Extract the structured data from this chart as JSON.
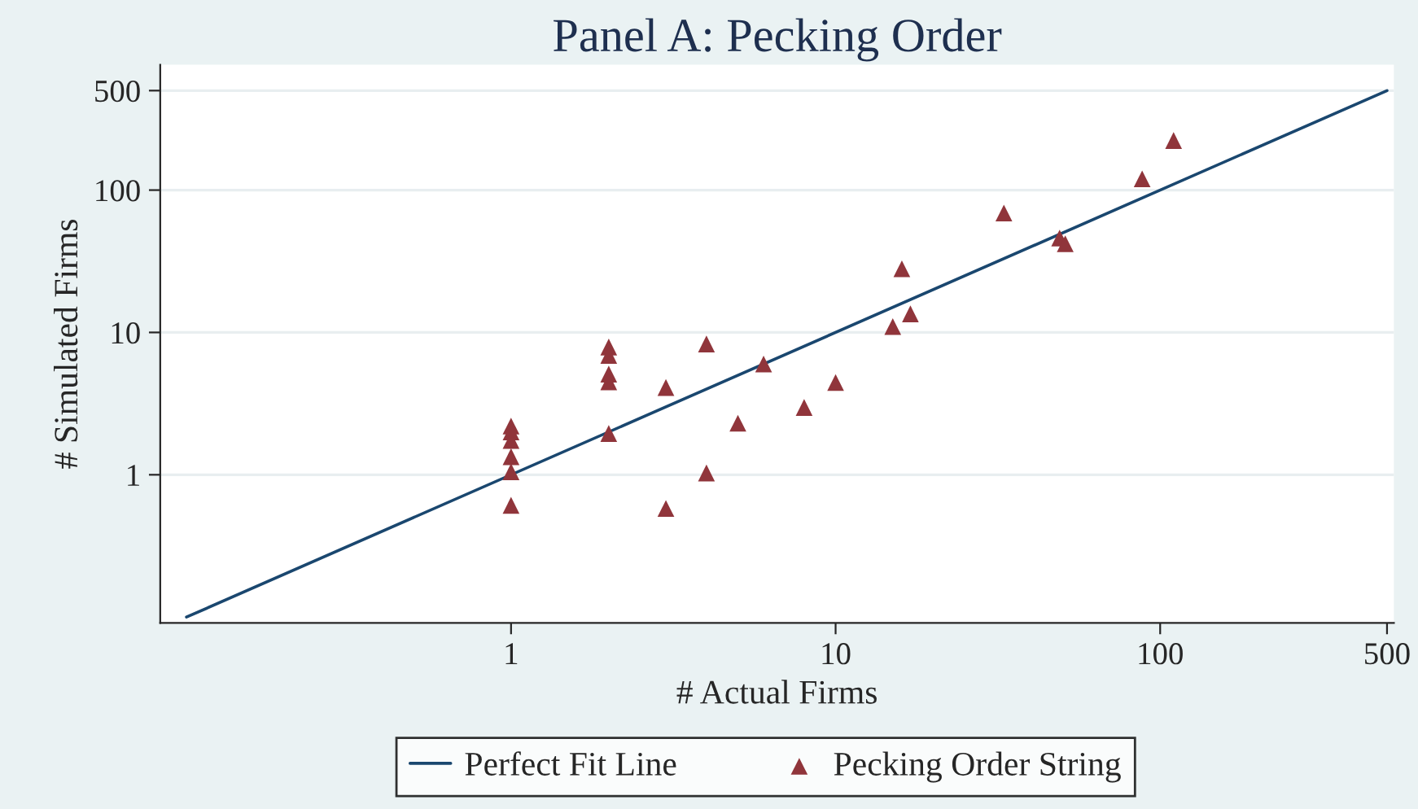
{
  "chart_data": {
    "type": "scatter",
    "title": "Panel A: Pecking Order",
    "xlabel": "# Actual Firms",
    "ylabel": "# Simulated Firms",
    "log": "xy",
    "xlim": [
      0.083,
      525
    ],
    "ylim": [
      0.091,
      760
    ],
    "xticks": [
      1,
      10,
      100,
      500
    ],
    "yticks": [
      1,
      10,
      100,
      500
    ],
    "grid": "y",
    "legend": "bottom",
    "series": [
      {
        "name": "Perfect Fit Line",
        "type": "line",
        "color": "#1a476f",
        "marker": "none",
        "line_style": "solid",
        "x": [
          0.1,
          500
        ],
        "values": [
          0.1,
          500
        ]
      },
      {
        "name": "Pecking Order String",
        "color": "#90353b",
        "marker": "triangle",
        "x": [
          1,
          1,
          1,
          1,
          1,
          1,
          2,
          2,
          2,
          2,
          2,
          3,
          3,
          4,
          4,
          5,
          6,
          8,
          10,
          15,
          16,
          17,
          33,
          49,
          51,
          88,
          110
        ],
        "values": [
          2.2,
          2.0,
          1.74,
          1.34,
          1.05,
          0.61,
          7.9,
          6.9,
          5.1,
          4.5,
          1.95,
          4.1,
          0.58,
          8.3,
          1.03,
          2.3,
          6.0,
          2.97,
          4.45,
          11,
          28,
          13.5,
          69,
          46,
          42,
          120,
          223
        ]
      }
    ]
  }
}
